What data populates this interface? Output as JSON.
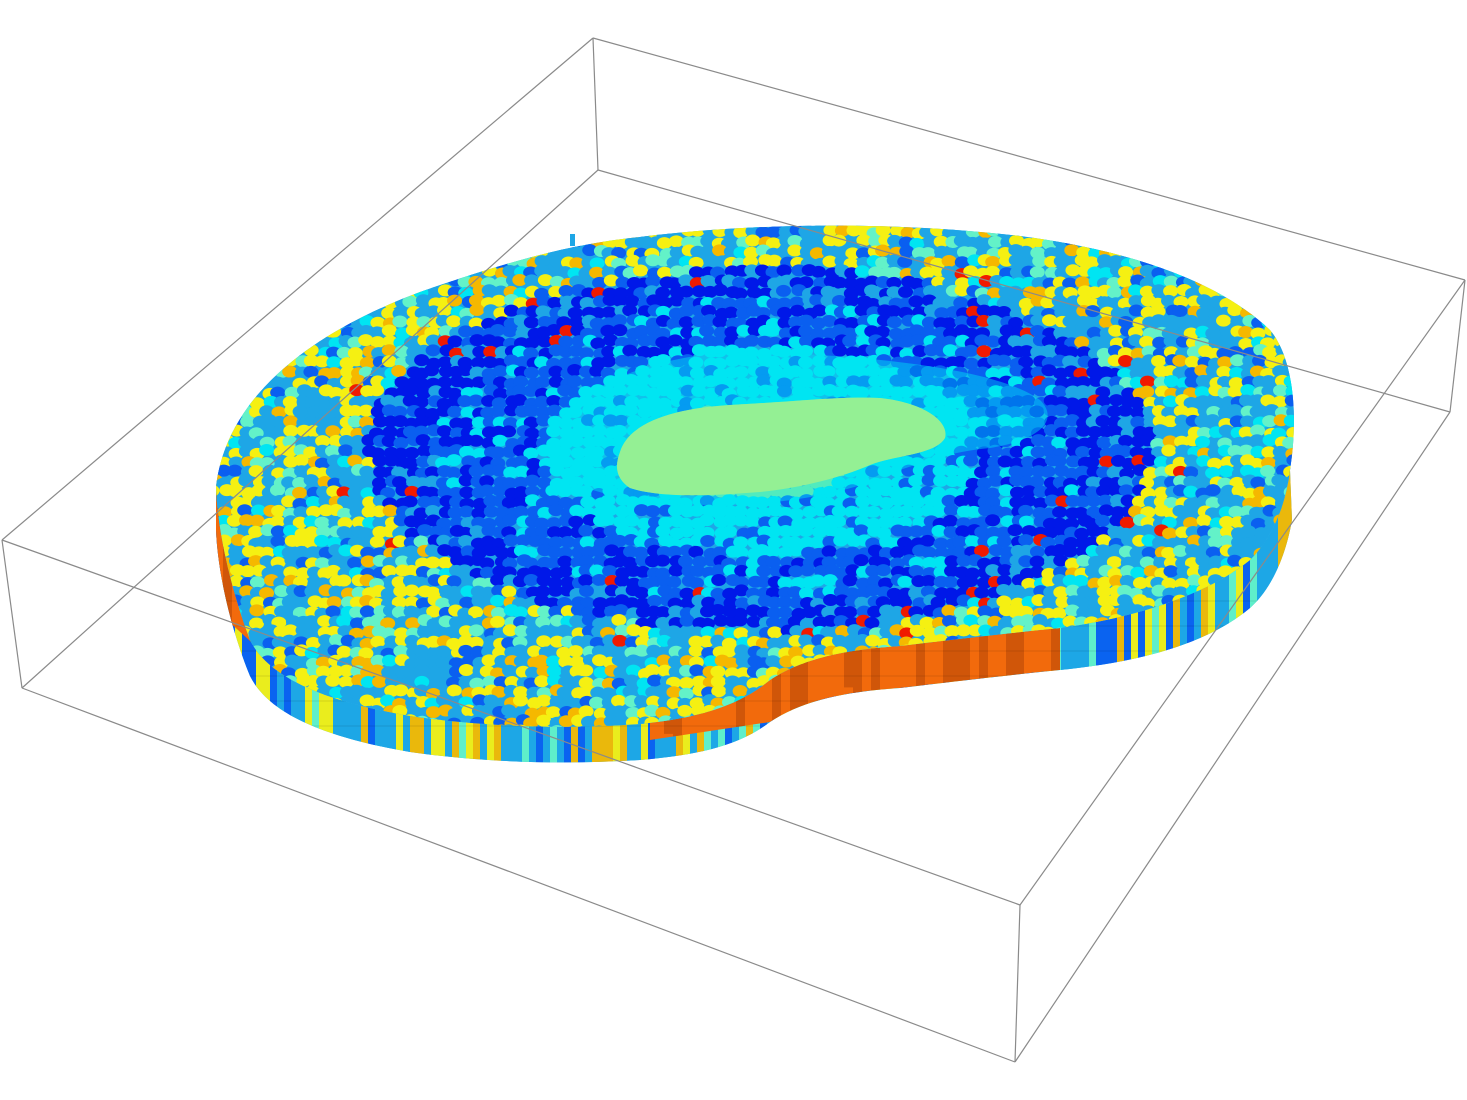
{
  "scene": {
    "background": "#ffffff",
    "box_stroke": "#8a8a8a",
    "colors": {
      "core": "#94f094",
      "inner_cyan": "#00e5f2",
      "light_blue": "#1ea6e6",
      "mid_blue": "#0a5ff0",
      "deep_blue": "#0018e8",
      "yellow": "#f5f012",
      "gold": "#f5b800",
      "aqua_green": "#63f2c8",
      "red": "#f01a00",
      "orange_side": "#f26a0c",
      "dark_orange": "#b44608"
    }
  }
}
